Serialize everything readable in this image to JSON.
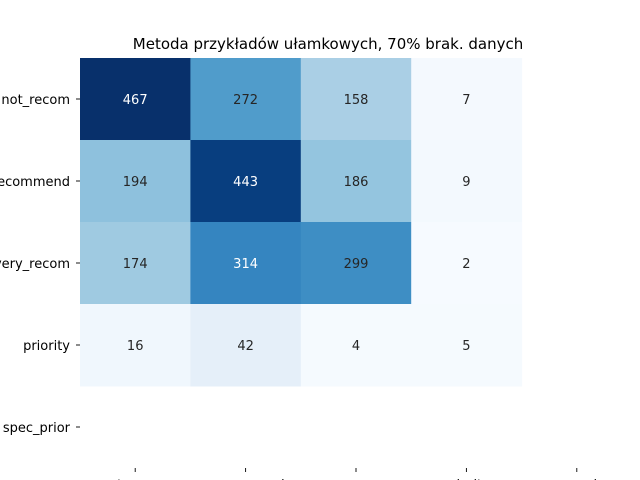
{
  "chart_data": {
    "type": "heatmap",
    "title": "Metoda przykładów ułamkowych, 70% brak. danych",
    "xlabel": "",
    "ylabel": "",
    "x_categories": [
      "not_recom",
      "recommend",
      "very_recom",
      "priority",
      "spec_prior"
    ],
    "y_categories": [
      "not_recom",
      "recommend",
      "very_recom",
      "priority",
      "spec_prior"
    ],
    "values": [
      [
        467,
        272,
        158,
        7,
        null
      ],
      [
        194,
        443,
        186,
        9,
        null
      ],
      [
        174,
        314,
        299,
        2,
        null
      ],
      [
        16,
        42,
        4,
        5,
        null
      ],
      [
        null,
        null,
        null,
        null,
        null
      ]
    ],
    "colormap": "Blues",
    "legend": "none",
    "grid": false
  }
}
